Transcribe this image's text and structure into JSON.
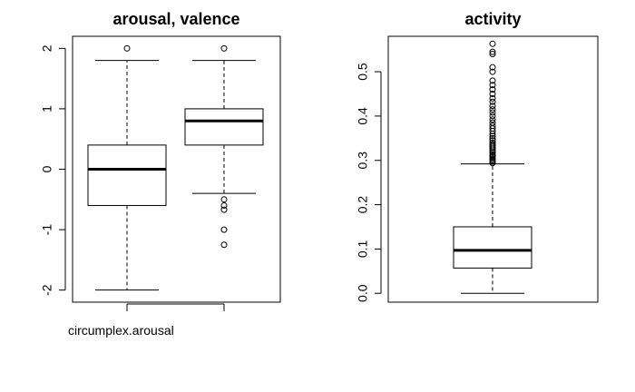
{
  "chart_data": [
    {
      "type": "boxplot",
      "title": "arousal, valence",
      "xlabel": "",
      "ylabel": "",
      "ylim": [
        -2.2,
        2.2
      ],
      "yticks": [
        -2,
        -1,
        0,
        1,
        2
      ],
      "ytick_labels": [
        "-2",
        "-1",
        "0",
        "1",
        "2"
      ],
      "categories": [
        "circumplex.arousal",
        ""
      ],
      "boxes": [
        {
          "whisker_low": -2.0,
          "q1": -0.6,
          "median": 0.0,
          "q3": 0.4,
          "whisker_high": 1.8,
          "outliers": [
            2.0
          ]
        },
        {
          "whisker_low": -0.4,
          "q1": 0.4,
          "median": 0.8,
          "q3": 1.0,
          "whisker_high": 1.8,
          "outliers": [
            2.0,
            -0.5,
            -0.6,
            -0.67,
            -1.0,
            -1.25
          ]
        }
      ]
    },
    {
      "type": "boxplot",
      "title": "activity",
      "xlabel": "",
      "ylabel": "",
      "ylim": [
        -0.02,
        0.58
      ],
      "yticks": [
        0.0,
        0.1,
        0.2,
        0.3,
        0.4,
        0.5
      ],
      "ytick_labels": [
        "0.0",
        "0.1",
        "0.2",
        "0.3",
        "0.4",
        "0.5"
      ],
      "categories": [
        ""
      ],
      "boxes": [
        {
          "whisker_low": 0.0,
          "q1": 0.057,
          "median": 0.097,
          "q3": 0.15,
          "whisker_high": 0.292,
          "outliers": [
            0.294,
            0.297,
            0.3,
            0.303,
            0.307,
            0.31,
            0.313,
            0.317,
            0.32,
            0.324,
            0.328,
            0.332,
            0.336,
            0.34,
            0.345,
            0.35,
            0.355,
            0.36,
            0.366,
            0.372,
            0.378,
            0.385,
            0.392,
            0.4,
            0.408,
            0.415,
            0.423,
            0.432,
            0.44,
            0.45,
            0.46,
            0.47,
            0.48,
            0.5,
            0.51,
            0.54,
            0.545,
            0.563
          ]
        }
      ]
    }
  ]
}
